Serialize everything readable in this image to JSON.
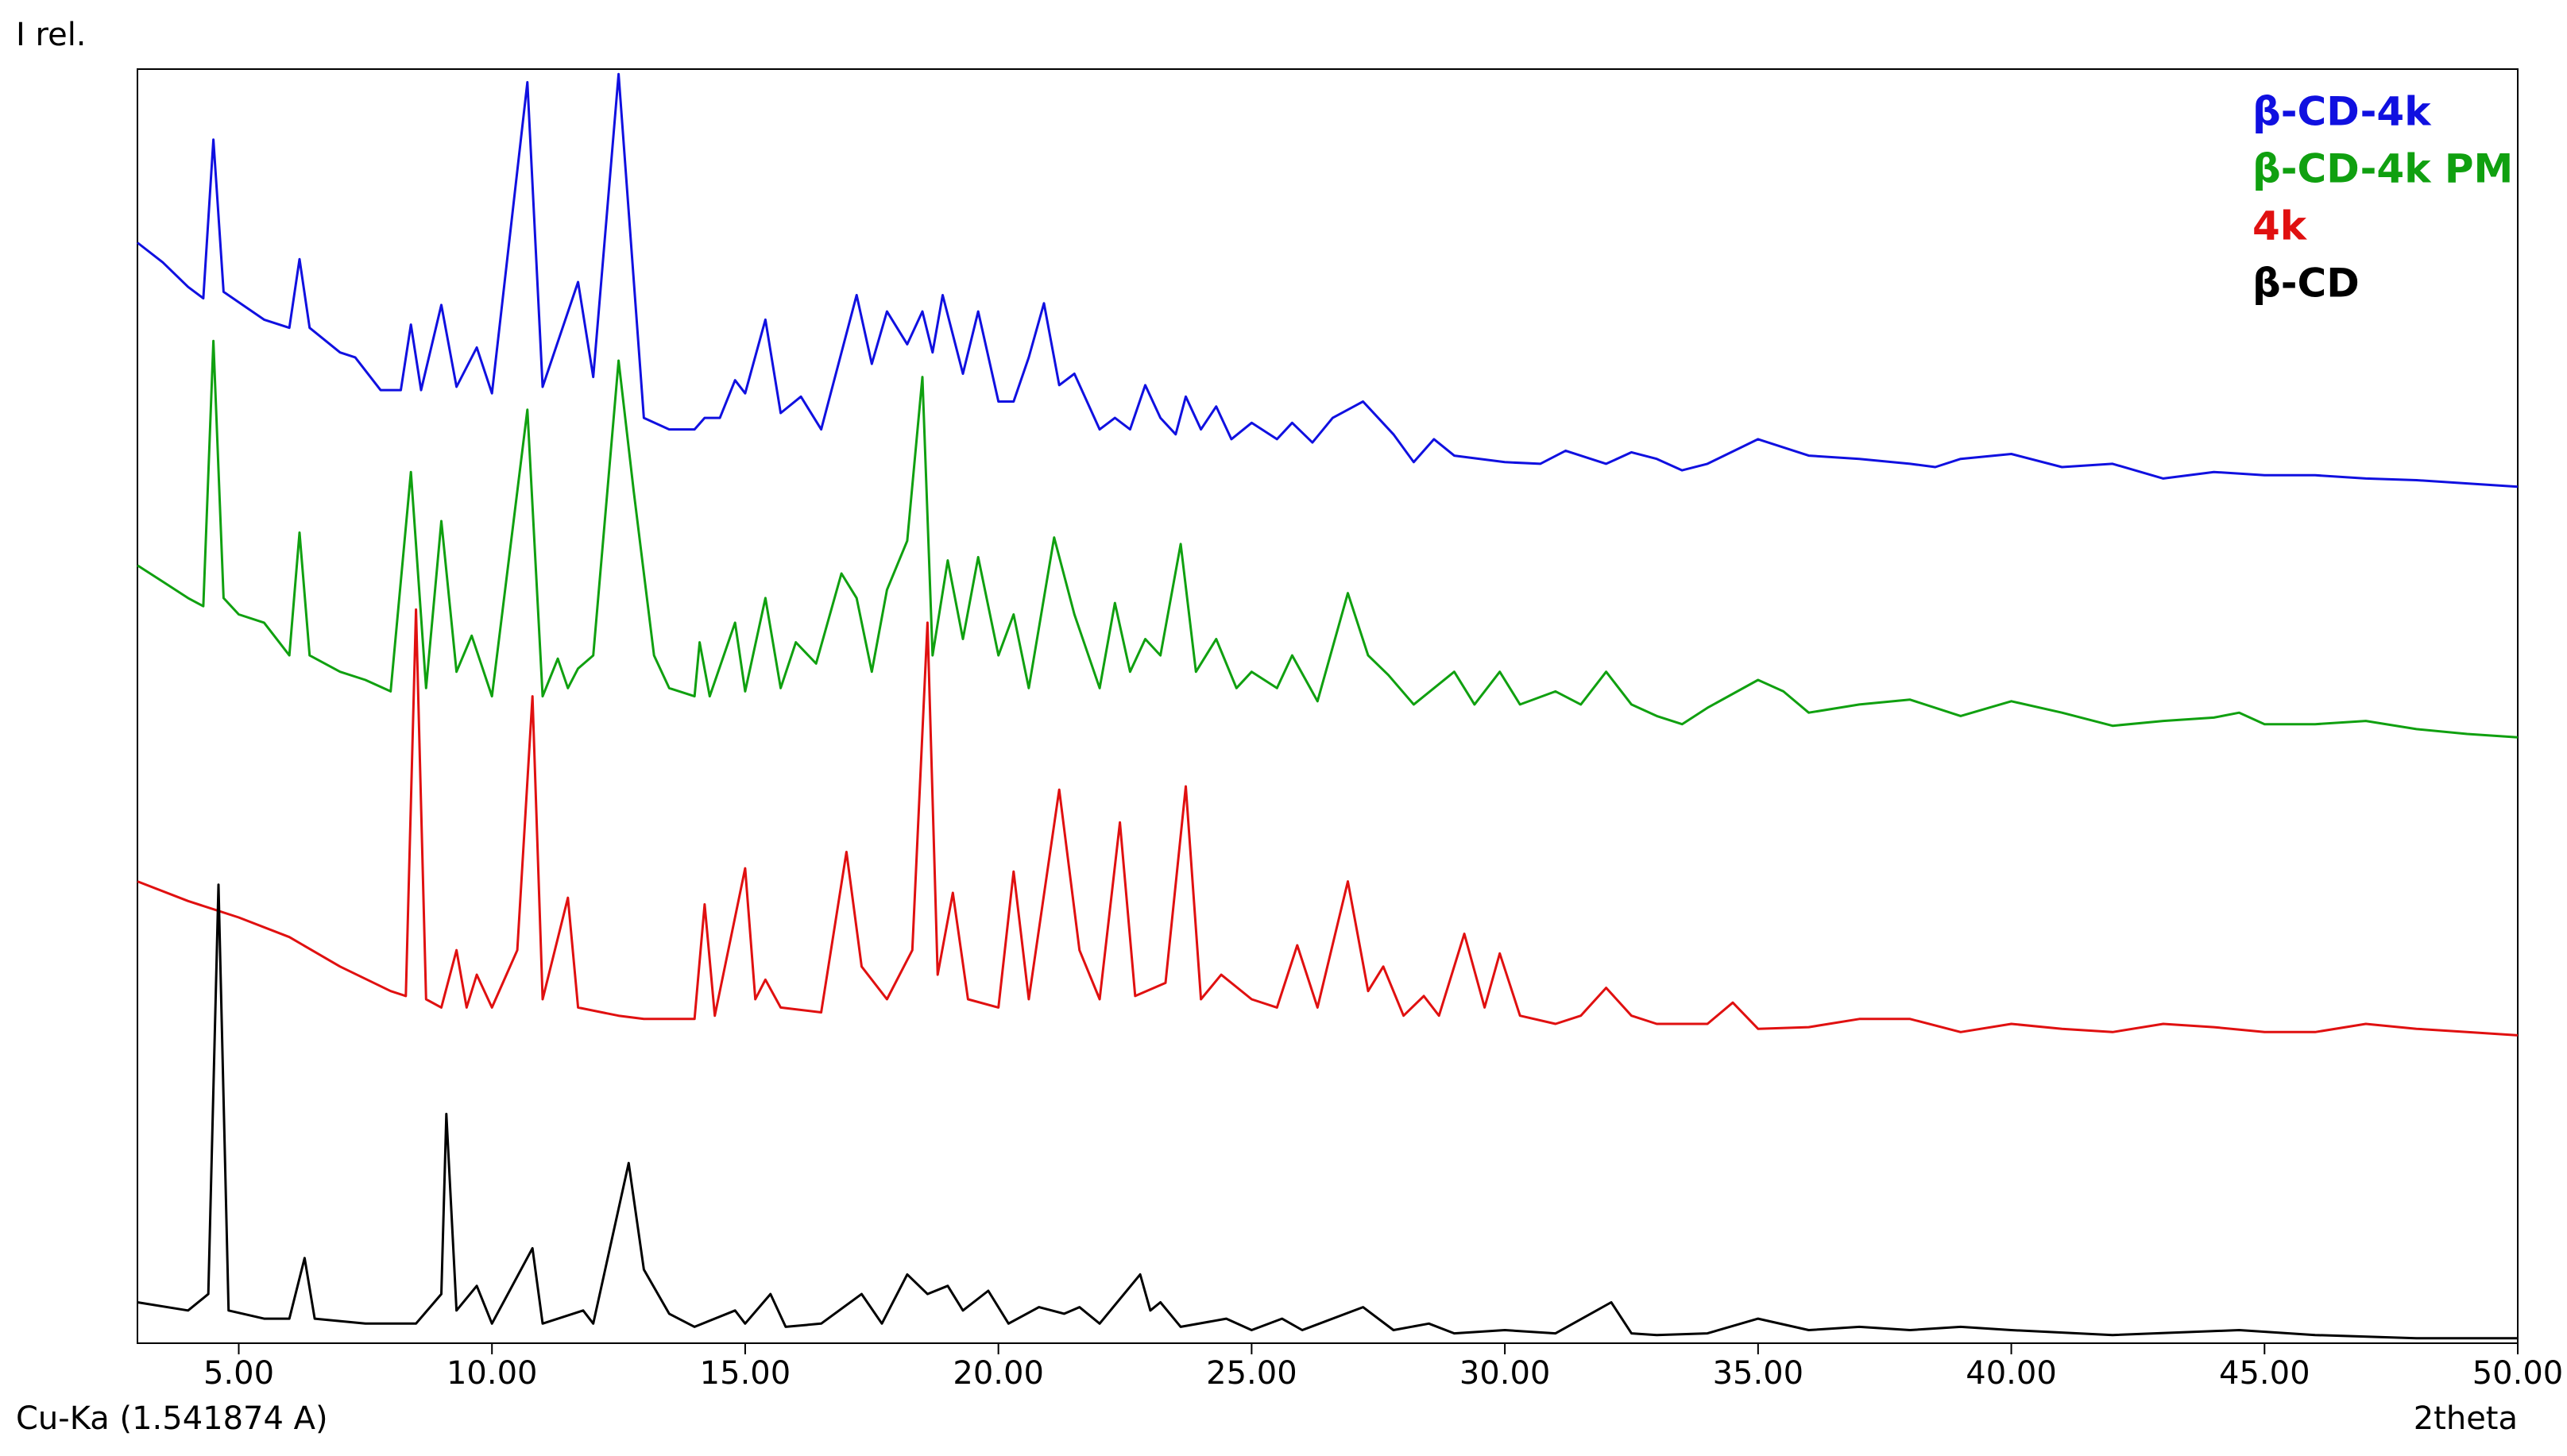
{
  "chart_data": {
    "type": "line",
    "y_label": "I rel.",
    "x_label": "2theta",
    "annotation": "Cu-Ka (1.541874 A)",
    "xlim": [
      3,
      50
    ],
    "xticks": [
      {
        "value": 5,
        "label": "5.00"
      },
      {
        "value": 10,
        "label": "10.00"
      },
      {
        "value": 15,
        "label": "15.00"
      },
      {
        "value": 20,
        "label": "20.00"
      },
      {
        "value": 25,
        "label": "25.00"
      },
      {
        "value": 30,
        "label": "30.00"
      },
      {
        "value": 35,
        "label": "35.00"
      },
      {
        "value": 40,
        "label": "40.00"
      },
      {
        "value": 45,
        "label": "45.00"
      },
      {
        "value": 50,
        "label": "50.00"
      }
    ],
    "ylim": [
      0,
      778
    ],
    "legend": "upper right",
    "series": [
      {
        "name": "β-CD-4k",
        "color": "#1010e0",
        "x": [
          3.0,
          3.5,
          4.0,
          4.3,
          4.5,
          4.7,
          5.5,
          6.0,
          6.2,
          6.4,
          7.0,
          7.3,
          7.8,
          8.2,
          8.4,
          8.6,
          9.0,
          9.3,
          9.7,
          10.0,
          10.7,
          11.0,
          11.7,
          12.0,
          12.5,
          13.0,
          13.5,
          14.0,
          14.2,
          14.5,
          14.8,
          15.0,
          15.4,
          15.7,
          16.1,
          16.5,
          17.2,
          17.5,
          17.8,
          18.2,
          18.5,
          18.7,
          18.9,
          19.3,
          19.6,
          20.0,
          20.3,
          20.6,
          20.9,
          21.2,
          21.5,
          22.0,
          22.3,
          22.6,
          22.9,
          23.2,
          23.5,
          23.7,
          24.0,
          24.3,
          24.6,
          25.0,
          25.5,
          25.8,
          26.2,
          26.6,
          27.2,
          27.8,
          28.2,
          28.6,
          29.0,
          30.0,
          30.7,
          31.2,
          32.0,
          32.5,
          33.0,
          33.5,
          34.0,
          35.0,
          36.0,
          37.0,
          38.0,
          38.5,
          39.0,
          40.0,
          41.0,
          42.0,
          43.0,
          44.0,
          45.0,
          46.0,
          47.0,
          48.0,
          49.0,
          50.0
        ],
        "values": [
          672,
          660,
          645,
          638,
          735,
          642,
          625,
          620,
          662,
          620,
          605,
          602,
          582,
          582,
          622,
          582,
          634,
          584,
          608,
          580,
          770,
          584,
          648,
          590,
          775,
          565,
          558,
          558,
          565,
          565,
          588,
          580,
          625,
          568,
          578,
          558,
          640,
          598,
          630,
          610,
          630,
          605,
          640,
          592,
          630,
          575,
          575,
          602,
          635,
          585,
          592,
          558,
          565,
          558,
          585,
          565,
          555,
          578,
          558,
          572,
          552,
          562,
          552,
          562,
          550,
          565,
          575,
          555,
          538,
          552,
          542,
          538,
          537,
          545,
          537,
          544,
          540,
          533,
          537,
          552,
          542,
          540,
          537,
          535,
          540,
          543,
          535,
          537,
          528,
          532,
          530,
          530,
          528,
          527,
          525,
          523
        ]
      },
      {
        "name": "β-CD-4k PM",
        "color": "#10a010",
        "x": [
          3.0,
          3.5,
          4.0,
          4.3,
          4.5,
          4.7,
          5.0,
          5.5,
          6.0,
          6.2,
          6.4,
          7.0,
          7.5,
          8.0,
          8.4,
          8.7,
          9.0,
          9.3,
          9.6,
          10.0,
          10.7,
          11.0,
          11.3,
          11.5,
          11.7,
          12.0,
          12.5,
          12.8,
          13.2,
          13.5,
          14.0,
          14.1,
          14.3,
          14.8,
          15.0,
          15.4,
          15.7,
          16.0,
          16.4,
          16.9,
          17.2,
          17.5,
          17.8,
          18.2,
          18.5,
          18.7,
          19.0,
          19.3,
          19.6,
          20.0,
          20.3,
          20.6,
          21.1,
          21.5,
          22.0,
          22.3,
          22.6,
          22.9,
          23.2,
          23.6,
          23.9,
          24.3,
          24.7,
          25.0,
          25.5,
          25.8,
          26.3,
          26.9,
          27.3,
          27.7,
          28.2,
          28.6,
          29.0,
          29.4,
          29.9,
          30.3,
          31.0,
          31.5,
          32.0,
          32.5,
          33.0,
          33.5,
          34.0,
          35.0,
          35.5,
          36.0,
          37.0,
          38.0,
          39.0,
          40.0,
          41.0,
          42.0,
          43.0,
          44.0,
          44.5,
          45.0,
          46.0,
          47.0,
          48.0,
          49.0,
          50.0
        ],
        "values": [
          475,
          465,
          455,
          450,
          612,
          455,
          445,
          440,
          420,
          495,
          420,
          410,
          405,
          398,
          532,
          400,
          502,
          410,
          432,
          395,
          570,
          395,
          418,
          400,
          412,
          420,
          600,
          520,
          420,
          400,
          395,
          428,
          395,
          440,
          398,
          455,
          400,
          428,
          415,
          470,
          455,
          410,
          460,
          490,
          590,
          420,
          478,
          430,
          480,
          420,
          445,
          400,
          492,
          445,
          400,
          452,
          410,
          430,
          420,
          488,
          410,
          430,
          400,
          410,
          400,
          420,
          392,
          458,
          420,
          408,
          390,
          400,
          410,
          390,
          410,
          390,
          398,
          390,
          410,
          390,
          383,
          378,
          388,
          405,
          398,
          385,
          390,
          393,
          383,
          392,
          385,
          377,
          380,
          382,
          385,
          378,
          378,
          380,
          375,
          372,
          370
        ]
      },
      {
        "name": "4k",
        "color": "#e01010",
        "x": [
          3.0,
          4.0,
          5.0,
          6.0,
          7.0,
          8.0,
          8.3,
          8.5,
          8.7,
          9.0,
          9.3,
          9.5,
          9.7,
          10.0,
          10.5,
          10.8,
          11.0,
          11.5,
          11.7,
          12.5,
          13.0,
          14.0,
          14.2,
          14.4,
          15.0,
          15.2,
          15.4,
          15.7,
          16.5,
          17.0,
          17.3,
          17.8,
          18.3,
          18.6,
          18.8,
          19.1,
          19.4,
          20.0,
          20.3,
          20.6,
          21.2,
          21.6,
          22.0,
          22.4,
          22.7,
          23.3,
          23.7,
          24.0,
          24.4,
          25.0,
          25.5,
          25.9,
          26.3,
          26.9,
          27.3,
          27.6,
          28.0,
          28.4,
          28.7,
          29.2,
          29.6,
          29.9,
          30.3,
          31.0,
          31.5,
          32.0,
          32.5,
          33.0,
          34.0,
          34.5,
          35.0,
          36.0,
          37.0,
          38.0,
          39.0,
          40.0,
          41.0,
          42.0,
          43.0,
          44.0,
          45.0,
          46.0,
          47.0,
          48.0,
          49.0,
          50.0
        ],
        "values": [
          282,
          270,
          260,
          248,
          230,
          215,
          212,
          448,
          210,
          205,
          240,
          205,
          225,
          205,
          240,
          395,
          210,
          272,
          205,
          200,
          198,
          198,
          268,
          200,
          290,
          210,
          222,
          205,
          202,
          300,
          230,
          210,
          240,
          440,
          225,
          275,
          210,
          205,
          288,
          210,
          338,
          240,
          210,
          318,
          212,
          220,
          340,
          210,
          225,
          210,
          205,
          243,
          205,
          282,
          215,
          230,
          200,
          212,
          200,
          250,
          205,
          238,
          200,
          195,
          200,
          217,
          200,
          195,
          195,
          208,
          192,
          193,
          198,
          198,
          190,
          195,
          192,
          190,
          195,
          193,
          190,
          190,
          195,
          192,
          190,
          188
        ]
      },
      {
        "name": "β-CD",
        "color": "#000000",
        "x": [
          3.0,
          4.0,
          4.4,
          4.6,
          4.8,
          5.5,
          6.0,
          6.3,
          6.5,
          7.5,
          8.5,
          9.0,
          9.1,
          9.3,
          9.7,
          10.0,
          10.8,
          11.0,
          11.8,
          12.0,
          12.7,
          13.0,
          13.5,
          14.0,
          14.8,
          15.0,
          15.5,
          15.8,
          16.5,
          17.3,
          17.7,
          18.2,
          18.6,
          19.0,
          19.3,
          19.8,
          20.2,
          20.8,
          21.3,
          21.6,
          22.0,
          22.8,
          23.0,
          23.2,
          23.6,
          24.5,
          25.0,
          25.6,
          26.0,
          27.2,
          27.8,
          28.5,
          29.0,
          30.0,
          31.0,
          32.1,
          32.5,
          33.0,
          34.0,
          35.0,
          36.0,
          37.0,
          38.0,
          39.0,
          40.0,
          42.0,
          44.5,
          46.0,
          48.0,
          50.0
        ],
        "values": [
          25,
          20,
          30,
          280,
          20,
          15,
          15,
          52,
          15,
          12,
          12,
          30,
          140,
          20,
          35,
          12,
          58,
          12,
          20,
          12,
          110,
          45,
          18,
          10,
          20,
          12,
          30,
          10,
          12,
          30,
          12,
          42,
          30,
          35,
          20,
          32,
          12,
          22,
          18,
          22,
          12,
          42,
          20,
          25,
          10,
          15,
          8,
          15,
          8,
          22,
          8,
          12,
          6,
          8,
          6,
          25,
          6,
          5,
          6,
          15,
          8,
          10,
          8,
          10,
          8,
          5,
          8,
          5,
          3,
          3
        ]
      }
    ]
  }
}
